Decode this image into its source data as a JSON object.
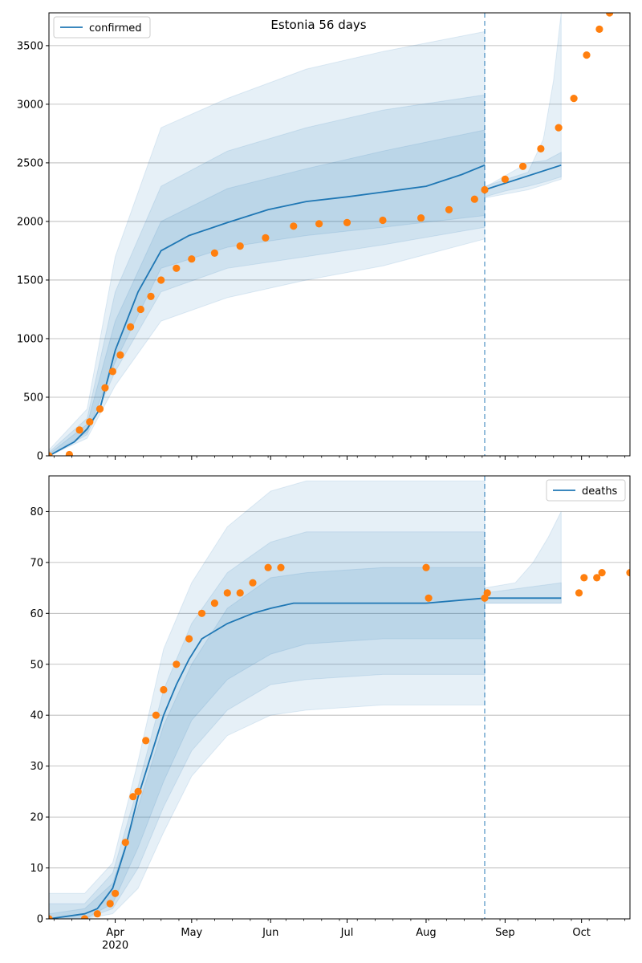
{
  "chart_data": [
    {
      "type": "line",
      "title": "Estonia 56 days",
      "legend": {
        "label": "confirmed",
        "placement": "top-left"
      },
      "ylim": [
        0,
        3780
      ],
      "yticks": [
        "0",
        "500",
        "1000",
        "1500",
        "2000",
        "2500",
        "3000",
        "3500"
      ],
      "ytick_values": [
        0,
        500,
        1000,
        1500,
        2000,
        2500,
        3000,
        3500
      ],
      "xlim": [
        "2020-03-06",
        "2020-10-20"
      ],
      "forecast_start": "2020-08-24",
      "grid": true,
      "colors": {
        "model": "#1f77b4",
        "observed": "#ff7f0e",
        "band": "#1f77b4"
      },
      "model": {
        "x": [
          "2020-03-06",
          "2020-03-16",
          "2020-03-21",
          "2020-03-26",
          "2020-04-01",
          "2020-04-10",
          "2020-04-19",
          "2020-04-30",
          "2020-05-15",
          "2020-05-31",
          "2020-06-15",
          "2020-07-01",
          "2020-07-15",
          "2020-08-01",
          "2020-08-15",
          "2020-08-24"
        ],
        "y": [
          0,
          120,
          230,
          400,
          900,
          1400,
          1750,
          1880,
          1990,
          2100,
          2170,
          2210,
          2250,
          2300,
          2400,
          2480
        ]
      },
      "forecast": {
        "x": [
          "2020-08-24",
          "2020-09-23"
        ],
        "y": [
          2270,
          2480
        ]
      },
      "bands": [
        {
          "x": [
            "2020-03-06",
            "2020-03-21",
            "2020-04-01",
            "2020-04-19",
            "2020-05-15",
            "2020-06-15",
            "2020-07-15",
            "2020-08-24"
          ],
          "lower": [
            0,
            150,
            600,
            1150,
            1350,
            1500,
            1620,
            1850
          ],
          "upper": [
            50,
            400,
            1700,
            2800,
            3050,
            3300,
            3450,
            3620
          ]
        },
        {
          "x": [
            "2020-03-06",
            "2020-03-21",
            "2020-04-01",
            "2020-04-19",
            "2020-05-15",
            "2020-06-15",
            "2020-07-15",
            "2020-08-24"
          ],
          "lower": [
            0,
            180,
            720,
            1400,
            1600,
            1700,
            1800,
            1950
          ],
          "upper": [
            30,
            320,
            1400,
            2300,
            2600,
            2800,
            2950,
            3080
          ]
        },
        {
          "x": [
            "2020-03-06",
            "2020-03-21",
            "2020-04-01",
            "2020-04-19",
            "2020-05-15",
            "2020-06-15",
            "2020-07-15",
            "2020-08-24"
          ],
          "lower": [
            0,
            200,
            800,
            1600,
            1780,
            1880,
            1950,
            2050
          ],
          "upper": [
            15,
            270,
            1150,
            2000,
            2280,
            2450,
            2600,
            2780
          ]
        },
        {
          "x": [
            "2020-08-24",
            "2020-09-01",
            "2020-09-10",
            "2020-09-17",
            "2020-09-23"
          ],
          "lower": [
            2210,
            2260,
            2300,
            2340,
            2380
          ],
          "upper": [
            2290,
            2390,
            2500,
            2520,
            2590
          ]
        },
        {
          "x": [
            "2020-08-24",
            "2020-09-10",
            "2020-09-16",
            "2020-09-20",
            "2020-09-23"
          ],
          "lower": [
            2200,
            2270,
            2310,
            2340,
            2360
          ],
          "upper": [
            2300,
            2420,
            2700,
            3200,
            3780
          ]
        }
      ],
      "observed": {
        "x": [
          "2020-03-06",
          "2020-03-14",
          "2020-03-18",
          "2020-03-22",
          "2020-03-26",
          "2020-03-28",
          "2020-03-31",
          "2020-04-03",
          "2020-04-07",
          "2020-04-11",
          "2020-04-15",
          "2020-04-19",
          "2020-04-25",
          "2020-05-01",
          "2020-05-10",
          "2020-05-20",
          "2020-05-30",
          "2020-06-10",
          "2020-06-20",
          "2020-07-01",
          "2020-07-15",
          "2020-07-30",
          "2020-08-10",
          "2020-08-20",
          "2020-08-24",
          "2020-09-01",
          "2020-09-08",
          "2020-09-15",
          "2020-09-22",
          "2020-09-28",
          "2020-10-03",
          "2020-10-08",
          "2020-10-12"
        ],
        "y": [
          0,
          10,
          220,
          290,
          400,
          580,
          720,
          860,
          1100,
          1250,
          1360,
          1500,
          1600,
          1680,
          1730,
          1790,
          1860,
          1960,
          1980,
          1990,
          2010,
          2030,
          2100,
          2190,
          2270,
          2360,
          2470,
          2620,
          2800,
          3050,
          3420,
          3640,
          3780
        ]
      },
      "xticks": [
        "Apr\n2020",
        "May",
        "Jun",
        "Jul",
        "Aug",
        "Sep",
        "Oct"
      ]
    },
    {
      "type": "line",
      "title": "",
      "legend": {
        "label": "deaths",
        "placement": "top-right"
      },
      "ylim": [
        0,
        87
      ],
      "yticks": [
        "0",
        "10",
        "20",
        "30",
        "40",
        "50",
        "60",
        "70",
        "80"
      ],
      "ytick_values": [
        0,
        10,
        20,
        30,
        40,
        50,
        60,
        70,
        80
      ],
      "xlim": [
        "2020-03-06",
        "2020-10-20"
      ],
      "forecast_start": "2020-08-24",
      "grid": true,
      "colors": {
        "model": "#1f77b4",
        "observed": "#ff7f0e",
        "band": "#1f77b4"
      },
      "model": {
        "x": [
          "2020-03-06",
          "2020-03-20",
          "2020-03-25",
          "2020-03-31",
          "2020-04-05",
          "2020-04-10",
          "2020-04-15",
          "2020-04-20",
          "2020-04-25",
          "2020-04-30",
          "2020-05-05",
          "2020-05-15",
          "2020-05-25",
          "2020-06-01",
          "2020-06-10",
          "2020-07-01",
          "2020-08-01",
          "2020-08-24"
        ],
        "y": [
          0,
          1,
          2,
          6,
          14,
          24,
          32,
          40,
          46,
          51,
          55,
          58,
          60,
          61,
          62,
          62,
          62,
          63
        ]
      },
      "forecast": {
        "x": [
          "2020-08-24",
          "2020-09-23"
        ],
        "y": [
          63,
          63
        ]
      },
      "bands": [
        {
          "x": [
            "2020-03-06",
            "2020-03-20",
            "2020-03-31",
            "2020-04-10",
            "2020-04-20",
            "2020-05-01",
            "2020-05-15",
            "2020-06-01",
            "2020-06-15",
            "2020-07-15",
            "2020-08-24"
          ],
          "lower": [
            0,
            0,
            1,
            6,
            17,
            28,
            36,
            40,
            41,
            42,
            42
          ],
          "upper": [
            5,
            5,
            11,
            31,
            53,
            66,
            77,
            84,
            86,
            86,
            86
          ]
        },
        {
          "x": [
            "2020-03-06",
            "2020-03-20",
            "2020-03-31",
            "2020-04-10",
            "2020-04-20",
            "2020-05-01",
            "2020-05-15",
            "2020-06-01",
            "2020-06-15",
            "2020-07-15",
            "2020-08-24"
          ],
          "lower": [
            0,
            0,
            2,
            10,
            22,
            33,
            41,
            46,
            47,
            48,
            48
          ],
          "upper": [
            3,
            3,
            9,
            26,
            45,
            58,
            68,
            74,
            76,
            76,
            76
          ]
        },
        {
          "x": [
            "2020-03-06",
            "2020-03-20",
            "2020-03-31",
            "2020-04-10",
            "2020-04-20",
            "2020-05-01",
            "2020-05-15",
            "2020-06-01",
            "2020-06-15",
            "2020-07-15",
            "2020-08-24"
          ],
          "lower": [
            0,
            0,
            3,
            14,
            27,
            39,
            47,
            52,
            54,
            55,
            55
          ],
          "upper": [
            1,
            2,
            7,
            22,
            38,
            50,
            61,
            67,
            68,
            69,
            69
          ]
        },
        {
          "x": [
            "2020-08-24",
            "2020-09-05",
            "2020-09-12",
            "2020-09-18",
            "2020-09-23"
          ],
          "lower": [
            62,
            62,
            62,
            62,
            62
          ],
          "upper": [
            65,
            66,
            70,
            75,
            80
          ]
        },
        {
          "x": [
            "2020-08-24",
            "2020-09-23"
          ],
          "lower": [
            62,
            62
          ],
          "upper": [
            64,
            66
          ]
        }
      ],
      "observed": {
        "x": [
          "2020-03-06",
          "2020-03-20",
          "2020-03-25",
          "2020-03-30",
          "2020-04-01",
          "2020-04-05",
          "2020-04-08",
          "2020-04-10",
          "2020-04-13",
          "2020-04-17",
          "2020-04-20",
          "2020-04-25",
          "2020-04-30",
          "2020-05-05",
          "2020-05-10",
          "2020-05-15",
          "2020-05-20",
          "2020-05-25",
          "2020-05-31",
          "2020-06-05",
          "2020-08-01",
          "2020-08-02",
          "2020-08-24",
          "2020-08-25",
          "2020-09-30",
          "2020-10-02",
          "2020-10-07",
          "2020-10-09",
          "2020-10-20"
        ],
        "y": [
          0,
          0,
          1,
          3,
          5,
          15,
          24,
          25,
          35,
          40,
          45,
          50,
          55,
          60,
          62,
          64,
          64,
          66,
          69,
          69,
          69,
          63,
          63,
          64,
          64,
          67,
          67,
          68,
          68
        ]
      },
      "xticks": [
        "Apr\n2020",
        "May",
        "Jun",
        "Jul",
        "Aug",
        "Sep",
        "Oct"
      ]
    }
  ]
}
